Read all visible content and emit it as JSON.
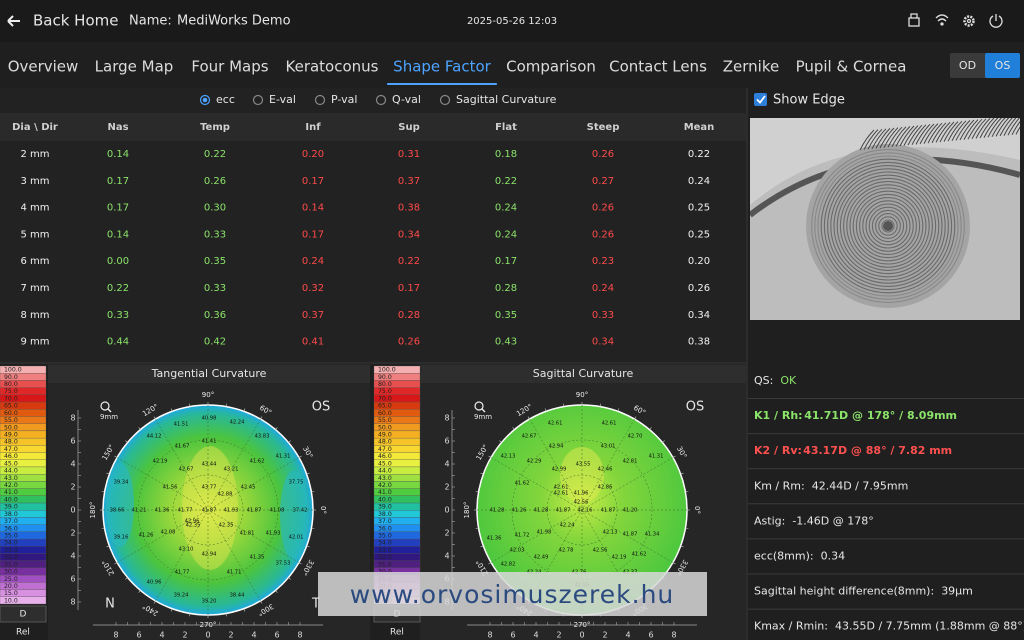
{
  "header": {
    "back": "Back Home",
    "name_label": "Name:",
    "name": "MediWorks Demo",
    "datetime": "2025-05-26 12:03"
  },
  "tabs": [
    "Overview",
    "Large Map",
    "Four Maps",
    "Keratoconus",
    "Shape Factor",
    "Comparison",
    "Contact Lens",
    "Zernike",
    "Pupil & Cornea"
  ],
  "active_tab": 4,
  "eye_toggle": {
    "options": [
      "OD",
      "OS"
    ],
    "selected": 1
  },
  "radio": {
    "options": [
      "ecc",
      "E-val",
      "P-val",
      "Q-val",
      "Sagittal Curvature"
    ],
    "selected": 0
  },
  "table": {
    "headers": [
      "Dia \\ Dir",
      "Nas",
      "Temp",
      "Inf",
      "Sup",
      "Flat",
      "Steep",
      "Mean"
    ],
    "rows": [
      [
        "2 mm",
        "0.14",
        "0.22",
        "0.20",
        "0.31",
        "0.18",
        "0.26",
        "0.22"
      ],
      [
        "3 mm",
        "0.17",
        "0.26",
        "0.17",
        "0.37",
        "0.22",
        "0.27",
        "0.24"
      ],
      [
        "4 mm",
        "0.17",
        "0.30",
        "0.14",
        "0.38",
        "0.24",
        "0.26",
        "0.25"
      ],
      [
        "5 mm",
        "0.14",
        "0.33",
        "0.17",
        "0.34",
        "0.24",
        "0.26",
        "0.25"
      ],
      [
        "6 mm",
        "0.00",
        "0.35",
        "0.24",
        "0.22",
        "0.17",
        "0.23",
        "0.20"
      ],
      [
        "7 mm",
        "0.22",
        "0.33",
        "0.32",
        "0.17",
        "0.28",
        "0.24",
        "0.26"
      ],
      [
        "8 mm",
        "0.33",
        "0.36",
        "0.37",
        "0.28",
        "0.35",
        "0.33",
        "0.34"
      ],
      [
        "9 mm",
        "0.44",
        "0.42",
        "0.41",
        "0.26",
        "0.43",
        "0.34",
        "0.38"
      ]
    ]
  },
  "image_panel": {
    "checkbox": "Show Edge",
    "checked": true
  },
  "scale": {
    "labels": [
      "100.0",
      "90.0",
      "80.0",
      "75.0",
      "70.0",
      "65.0",
      "60.0",
      "55.0",
      "50.0",
      "49.0",
      "48.0",
      "47.0",
      "46.0",
      "45.0",
      "44.0",
      "43.0",
      "42.0",
      "41.0",
      "40.0",
      "39.0",
      "38.0",
      "37.0",
      "36.0",
      "35.0",
      "34.0",
      "33.0",
      "32.0",
      "31.0",
      "30.0",
      "25.0",
      "20.0",
      "15.0",
      "10.0"
    ],
    "unit": "D",
    "mode": "Rel"
  },
  "axis_ticks": [
    "8",
    "6",
    "4",
    "2",
    "0",
    "2",
    "4",
    "6",
    "8"
  ],
  "angles": [
    "90°",
    "60°",
    "30°",
    "0°",
    "330°",
    "300°",
    "270°",
    "240°",
    "210°",
    "180°",
    "150°",
    "120°"
  ],
  "maps": [
    {
      "title": "Tangential Curvature",
      "eye": "OS",
      "zoom": "9mm",
      "nasal": "N",
      "temporal": "T",
      "values": [
        "40.98",
        "42.24",
        "41.51",
        "44.12",
        "43.83",
        "41.67",
        "41.41",
        "42.19",
        "41.62",
        "41.31",
        "42.67",
        "43.44",
        "43.21",
        "39.34",
        "41.56",
        "43.77",
        "42.45",
        "37.75",
        "42.88",
        "38.66",
        "41.21",
        "41.36",
        "41.77",
        "41.87",
        "41.93",
        "41.87",
        "41.08",
        "37.42",
        "42.96",
        "42.35",
        "42.35",
        "42.08",
        "39.16",
        "41.26",
        "41.81",
        "41.93",
        "42.01",
        "43.10",
        "42.94",
        "41.35",
        "37.53",
        "41.77",
        "41.71",
        "40.96",
        "39.24",
        "39.20",
        "38.44"
      ]
    },
    {
      "title": "Sagittal Curvature",
      "eye": "OS",
      "zoom": "9mm",
      "values": [
        "42.61",
        "42.61",
        "42.67",
        "42.70",
        "42.94",
        "43.01",
        "42.13",
        "42.29",
        "42.99",
        "43.55",
        "42.81",
        "41.31",
        "42.46",
        "42.61",
        "42.86",
        "41.96",
        "41.62",
        "42.61",
        "42.56",
        "41.28",
        "41.26",
        "41.28",
        "41.87",
        "42.16",
        "41.87",
        "41.20",
        "41.36",
        "41.72",
        "41.98",
        "42.24",
        "42.13",
        "41.87",
        "41.34",
        "42.03",
        "42.78",
        "42.56",
        "42.49",
        "42.19",
        "41.62",
        "42.82",
        "42.24",
        "42.76",
        "42.37",
        "41.85"
      ]
    }
  ],
  "info": [
    {
      "label": "QS:",
      "value": "OK"
    },
    {
      "label": "K1 / Rh:",
      "value": "41.71D @ 178° / 8.09mm"
    },
    {
      "label": "K2 / Rv:",
      "value": "43.17D @ 88° / 7.82 mm"
    },
    {
      "label": "Km / Rm:",
      "value": "42.44D / 7.95mm"
    },
    {
      "label": "Astig:",
      "value": "-1.46D @ 178°"
    },
    {
      "label": "ecc(8mm):",
      "value": "0.34"
    },
    {
      "label": "Sagittal height difference(8mm):",
      "value": "39μm"
    },
    {
      "label": "Kmax / Rmin:",
      "value": "43.55D / 7.75mm (1.88mm @ 88°)"
    }
  ],
  "watermark": "www.orvosimuszerek.hu"
}
